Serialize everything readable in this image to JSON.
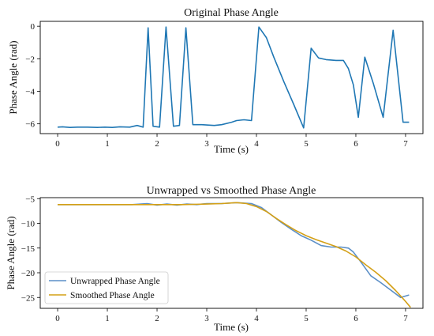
{
  "chart_data": [
    {
      "type": "line",
      "title": "Original Phase Angle",
      "xlabel": "Time (s)",
      "ylabel": "Phase Angle (rad)",
      "xlim": [
        -0.35,
        7.35
      ],
      "ylim": [
        -6.6,
        0.3
      ],
      "xticks": [
        0,
        1,
        2,
        3,
        4,
        5,
        6,
        7
      ],
      "yticks": [
        0,
        -2,
        -4,
        -6
      ],
      "series": [
        {
          "color": "#1f77b4",
          "x": [
            0,
            0.1,
            0.25,
            0.4,
            0.6,
            0.8,
            0.95,
            1.1,
            1.25,
            1.45,
            1.6,
            1.72,
            1.82,
            1.92,
            2.05,
            2.18,
            2.33,
            2.45,
            2.58,
            2.72,
            2.9,
            3.15,
            3.3,
            3.5,
            3.6,
            3.75,
            3.9,
            4.05,
            4.2,
            4.35,
            4.55,
            4.75,
            4.95,
            5.1,
            5.25,
            5.4,
            5.6,
            5.75,
            5.85,
            5.95,
            6.05,
            6.18,
            6.35,
            6.55,
            6.75,
            6.95,
            7.07
          ],
          "y": [
            -6.2,
            -6.18,
            -6.22,
            -6.2,
            -6.2,
            -6.22,
            -6.2,
            -6.22,
            -6.18,
            -6.2,
            -6.1,
            -6.2,
            -0.1,
            -6.15,
            -6.2,
            -0.05,
            -6.15,
            -6.1,
            -0.1,
            -6.05,
            -6.05,
            -6.1,
            -6.05,
            -5.9,
            -5.8,
            -5.75,
            -5.8,
            -0.05,
            -0.7,
            -1.9,
            -3.4,
            -4.8,
            -6.25,
            -1.35,
            -1.95,
            -2.05,
            -2.1,
            -2.1,
            -2.6,
            -3.6,
            -5.6,
            -1.9,
            -3.5,
            -5.6,
            -0.25,
            -5.9,
            -5.9
          ]
        }
      ]
    },
    {
      "type": "line",
      "title": "Unwrapped vs Smoothed Phase Angle",
      "xlabel": "Time (s)",
      "ylabel": "Phase Angle (rad)",
      "xlim": [
        -0.35,
        7.35
      ],
      "ylim": [
        -27.2,
        -4.8
      ],
      "xticks": [
        0,
        1,
        2,
        3,
        4,
        5,
        6,
        7
      ],
      "yticks": [
        -5,
        -10,
        -15,
        -20,
        -25
      ],
      "legend": "lower-left",
      "series": [
        {
          "name": "Unwrapped Phase Angle",
          "color": "#5b8fc7",
          "x": [
            0,
            0.5,
            1,
            1.5,
            1.8,
            2.0,
            2.2,
            2.4,
            2.6,
            2.8,
            3.0,
            3.3,
            3.6,
            3.9,
            4.1,
            4.3,
            4.5,
            4.7,
            4.9,
            5.1,
            5.3,
            5.5,
            5.7,
            5.85,
            5.95,
            6.1,
            6.3,
            6.5,
            6.7,
            6.9,
            7.07
          ],
          "y": [
            -6.2,
            -6.2,
            -6.2,
            -6.2,
            -6.0,
            -6.3,
            -6.1,
            -6.3,
            -6.1,
            -6.2,
            -6.0,
            -6.0,
            -5.8,
            -6.0,
            -6.8,
            -8.3,
            -9.8,
            -11.2,
            -12.5,
            -13.4,
            -14.5,
            -14.8,
            -14.8,
            -15.0,
            -15.8,
            -17.8,
            -20.6,
            -22.0,
            -23.5,
            -25.0,
            -24.5
          ]
        },
        {
          "name": "Smoothed Phase Angle",
          "color": "#d4a017",
          "x": [
            0,
            0.5,
            1,
            1.5,
            2.0,
            2.5,
            3.0,
            3.3,
            3.6,
            3.8,
            4.0,
            4.2,
            4.4,
            4.6,
            4.8,
            5.0,
            5.2,
            5.4,
            5.6,
            5.8,
            6.0,
            6.2,
            6.4,
            6.6,
            6.8,
            7.0,
            7.1
          ],
          "y": [
            -6.2,
            -6.2,
            -6.2,
            -6.2,
            -6.2,
            -6.2,
            -6.1,
            -6.0,
            -5.8,
            -6.0,
            -6.6,
            -7.6,
            -9.0,
            -10.3,
            -11.5,
            -12.5,
            -13.3,
            -14.0,
            -14.7,
            -15.6,
            -16.8,
            -18.4,
            -19.9,
            -21.6,
            -23.6,
            -25.8,
            -27.0
          ]
        }
      ]
    }
  ]
}
